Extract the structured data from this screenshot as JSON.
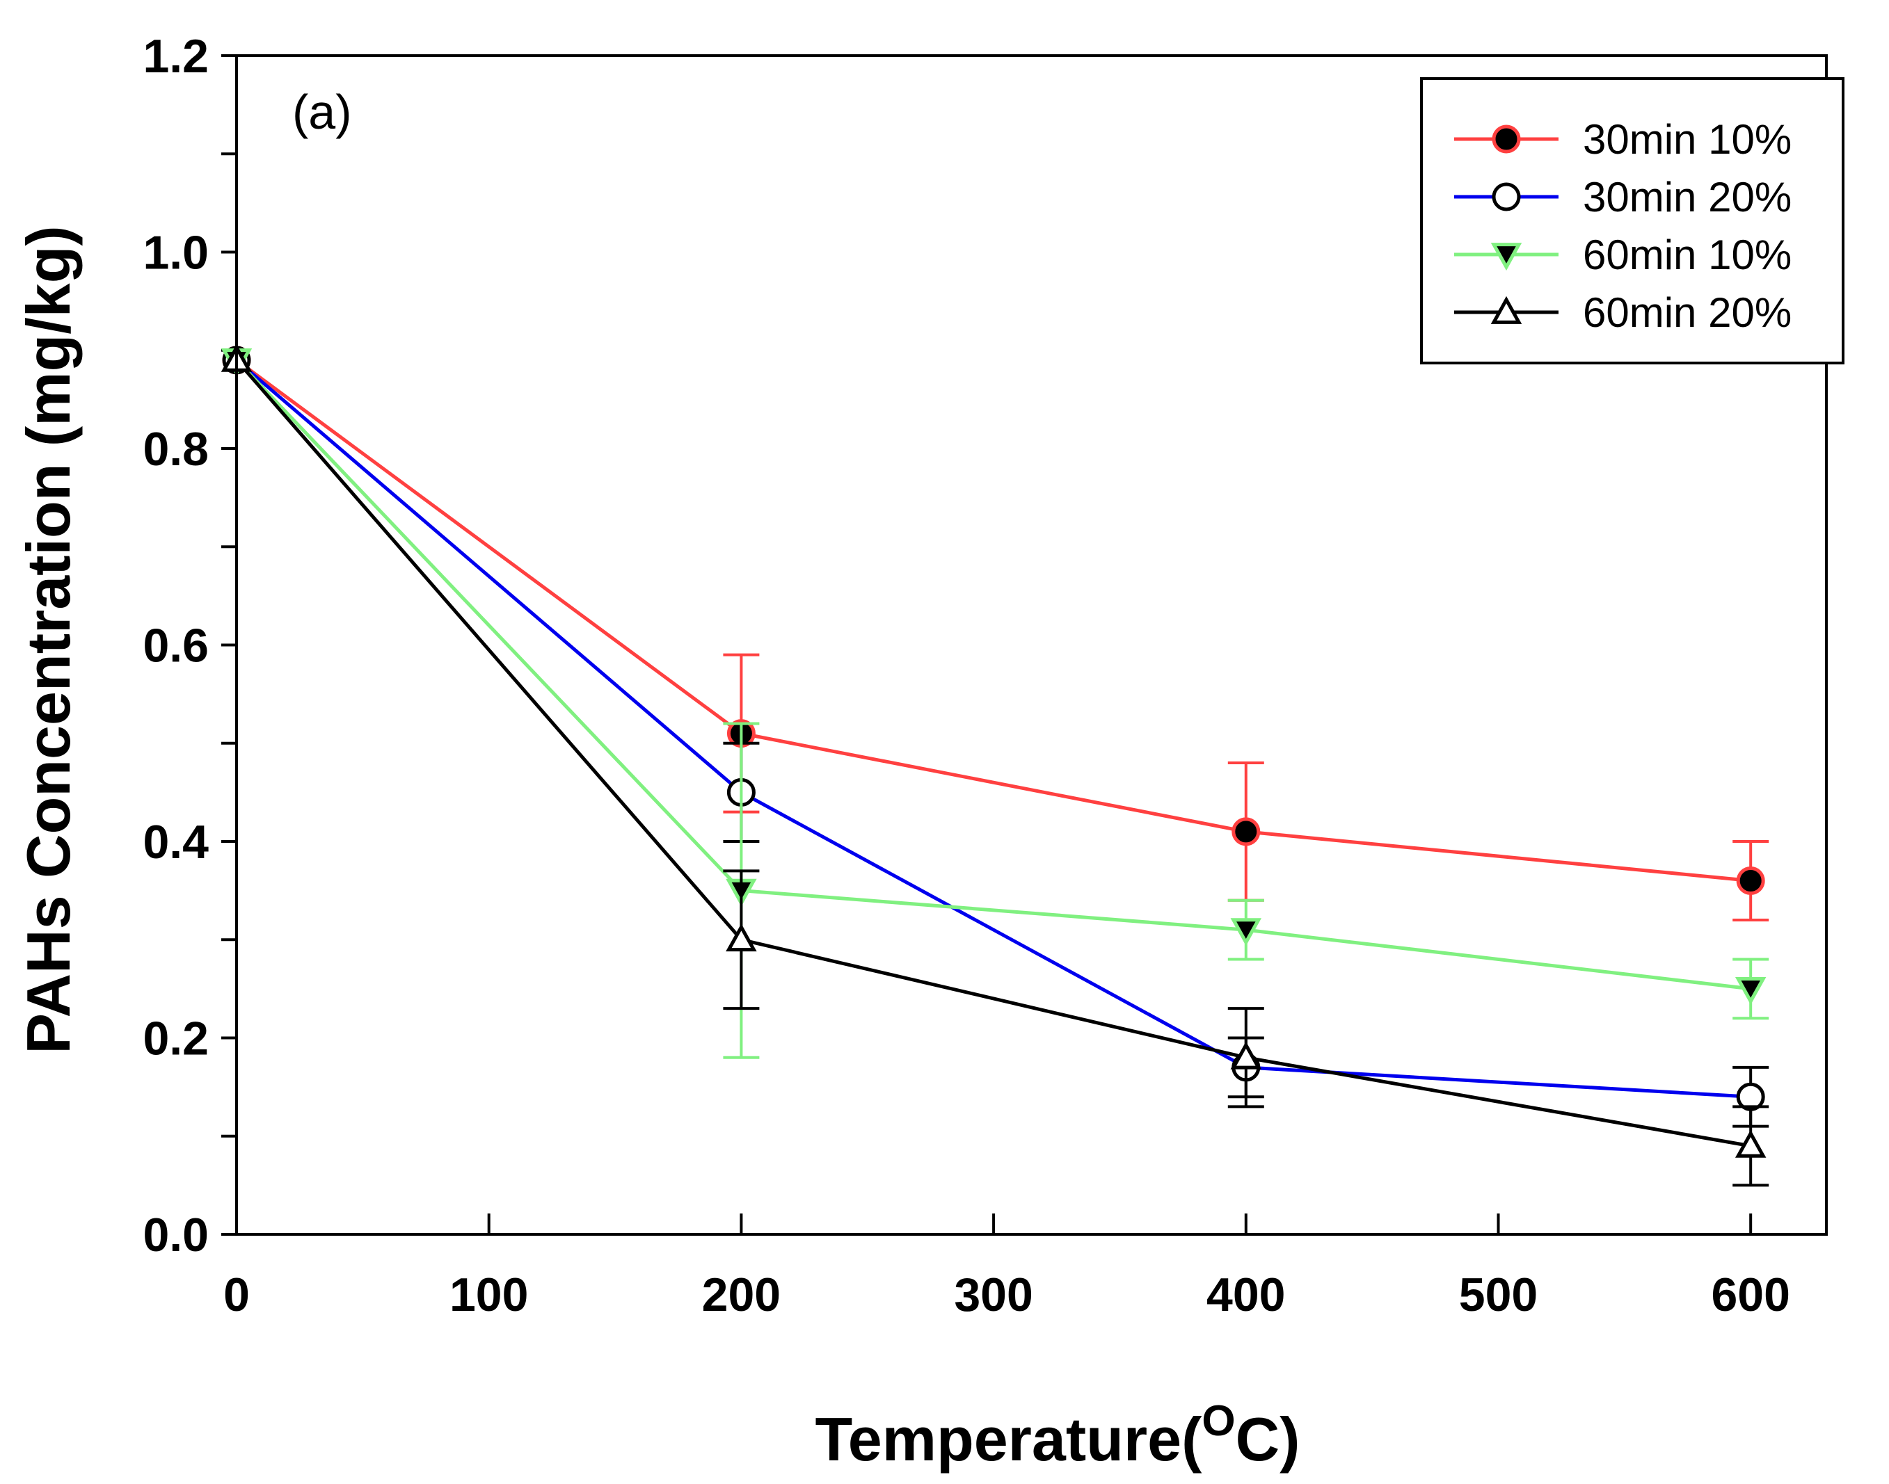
{
  "chart_data": {
    "type": "line",
    "panel_label": "(a)",
    "xlabel": "Temperature(",
    "xlabel_superscript": "O",
    "xlabel_suffix": "C)",
    "ylabel": "PAHs Concentration (mg/kg)",
    "xlim": [
      0,
      630
    ],
    "ylim": [
      0,
      1.2
    ],
    "xticks": [
      0,
      100,
      200,
      300,
      400,
      500,
      600
    ],
    "xtick_labels": [
      "0",
      "100",
      "200",
      "300",
      "400",
      "500",
      "600"
    ],
    "yticks": [
      0,
      0.2,
      0.4,
      0.6,
      0.8,
      1.0,
      1.2
    ],
    "ytick_labels": [
      "0.0",
      "0.2",
      "0.4",
      "0.6",
      "0.8",
      "1.0",
      "1.2"
    ],
    "grid": false,
    "legend_position": "top-right",
    "x": [
      0,
      200,
      400,
      600
    ],
    "series": [
      {
        "name": "30min 10%",
        "color": "#ff4040",
        "marker": "filled-circle",
        "marker_fill": "#000000",
        "marker_stroke": "#ff4040",
        "values": [
          0.89,
          0.51,
          0.41,
          0.36
        ],
        "errors": [
          0,
          0.08,
          0.07,
          0.04
        ],
        "error_color": "#ff4040"
      },
      {
        "name": "30min 20%",
        "color": "#0000ee",
        "marker": "open-circle",
        "marker_fill": "#ffffff",
        "marker_stroke": "#000000",
        "values": [
          0.89,
          0.45,
          0.17,
          0.14
        ],
        "errors": [
          0,
          0.05,
          0.03,
          0.03
        ],
        "error_color": "#000000"
      },
      {
        "name": "60min 10%",
        "color": "#80f080",
        "marker": "filled-triangle-down",
        "marker_fill": "#000000",
        "marker_stroke": "#80f080",
        "values": [
          0.89,
          0.35,
          0.31,
          0.25
        ],
        "errors": [
          0,
          0.17,
          0.03,
          0.03
        ],
        "error_color": "#80f080"
      },
      {
        "name": "60min 20%",
        "color": "#000000",
        "marker": "open-triangle-up",
        "marker_fill": "#ffffff",
        "marker_stroke": "#000000",
        "values": [
          0.89,
          0.3,
          0.18,
          0.09
        ],
        "errors": [
          0,
          0.07,
          0.05,
          0.04
        ],
        "error_color": "#000000"
      }
    ]
  }
}
